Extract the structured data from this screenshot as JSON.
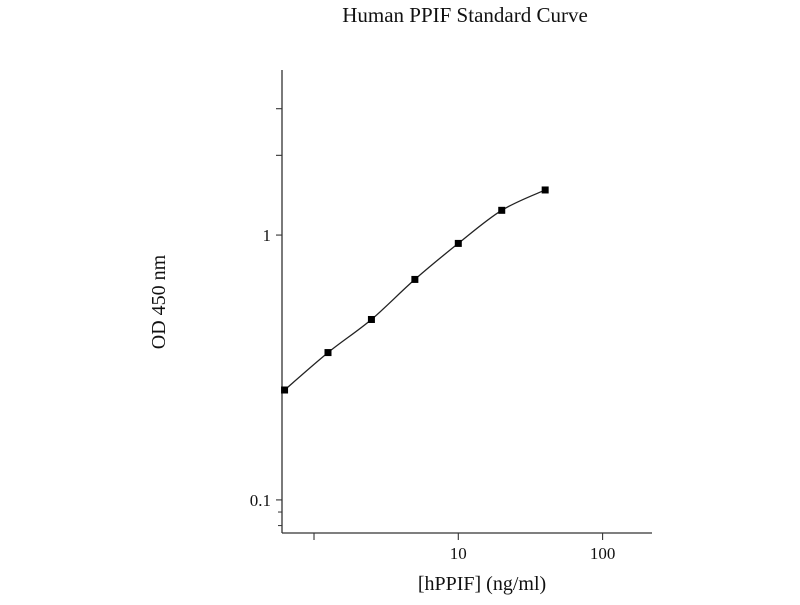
{
  "chart_data": {
    "type": "scatter",
    "title": "Human PPIF Standard Curve",
    "xlabel": "[hPPIF] (ng/ml)",
    "ylabel": "OD 450 nm",
    "x_scale": "log",
    "y_scale": "log",
    "xlim": [
      0.6,
      220
    ],
    "ylim": [
      0.075,
      4.2
    ],
    "x_tick_labels": [
      {
        "value": 10,
        "label": "10"
      },
      {
        "value": 100,
        "label": "100"
      }
    ],
    "y_tick_labels": [
      {
        "value": 0.1,
        "label": "0.1"
      },
      {
        "value": 1,
        "label": "1"
      }
    ],
    "series": [
      {
        "x": [
          0.625,
          1.25,
          2.5,
          5,
          10,
          20,
          40
        ],
        "y": [
          0.26,
          0.36,
          0.48,
          0.68,
          0.93,
          1.24,
          1.48
        ]
      }
    ],
    "curve_fit": true,
    "marker": "square",
    "grid": false,
    "colors": {
      "line": "#222222",
      "marker": "#000000",
      "axis": "#333333",
      "text": "#111111"
    }
  }
}
